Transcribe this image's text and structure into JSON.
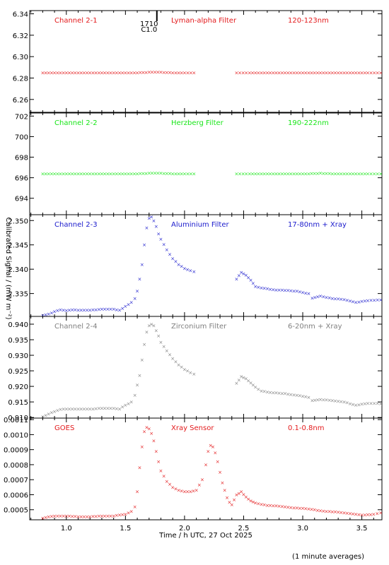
{
  "chart_data": [
    {
      "type": "scatter",
      "channel": "Channel 2-1",
      "filter": "Lyman-alpha Filter",
      "band": "120-123nm",
      "color": "#e31a1c",
      "yticks": [
        "6.26",
        "6.28",
        "6.30",
        "6.32",
        "6.34"
      ],
      "ylim": [
        6.248,
        6.343
      ],
      "marker_label": "1710 C1.0",
      "marker_x": 1.7,
      "series": [
        {
          "x": [
            0.8,
            0.9,
            1.0,
            1.1,
            1.2,
            1.3,
            1.4,
            1.5,
            1.6,
            1.7,
            1.8,
            1.9,
            2.0,
            2.08
          ],
          "y": [
            6.285,
            6.285,
            6.285,
            6.285,
            6.285,
            6.285,
            6.285,
            6.285,
            6.285,
            6.2855,
            6.2855,
            6.285,
            6.285,
            6.285
          ]
        },
        {
          "x": [
            2.44,
            2.55,
            2.65,
            2.75,
            2.85,
            2.95,
            3.05,
            3.15,
            3.25,
            3.35,
            3.45,
            3.55,
            3.66
          ],
          "y": [
            6.285,
            6.285,
            6.285,
            6.285,
            6.285,
            6.285,
            6.285,
            6.285,
            6.285,
            6.285,
            6.285,
            6.285,
            6.285
          ]
        }
      ]
    },
    {
      "type": "scatter",
      "channel": "Channel 2-2",
      "filter": "Herzberg Filter",
      "band": "190-222nm",
      "color": "#19e619",
      "yticks": [
        "694",
        "696",
        "698",
        "700",
        "702"
      ],
      "ylim": [
        692.4,
        702.3
      ],
      "series": [
        {
          "x": [
            0.8,
            0.9,
            1.0,
            1.1,
            1.2,
            1.3,
            1.4,
            1.5,
            1.6,
            1.7,
            1.8,
            1.9,
            2.0,
            2.08
          ],
          "y": [
            696.4,
            696.4,
            696.4,
            696.4,
            696.4,
            696.4,
            696.4,
            696.4,
            696.4,
            696.45,
            696.45,
            696.4,
            696.4,
            696.4
          ]
        },
        {
          "x": [
            2.44,
            2.55,
            2.65,
            2.75,
            2.85,
            2.95,
            3.05,
            3.15,
            3.25,
            3.35,
            3.45,
            3.55,
            3.66
          ],
          "y": [
            696.4,
            696.4,
            696.4,
            696.4,
            696.4,
            696.4,
            696.4,
            696.45,
            696.4,
            696.4,
            696.4,
            696.4,
            696.4
          ]
        }
      ]
    },
    {
      "type": "scatter",
      "channel": "Channel 2-3",
      "filter": "Aluminium Filter",
      "band": "17-80nm + Xray",
      "color": "#1a1acc",
      "yticks": [
        "2.335",
        "2.340",
        "2.345",
        "2.350"
      ],
      "ylim": [
        2.3303,
        2.3512
      ],
      "series": [
        {
          "x": [
            0.8,
            0.85,
            0.9,
            0.95,
            1.0,
            1.05,
            1.1,
            1.2,
            1.3,
            1.4,
            1.45,
            1.5,
            1.55,
            1.58,
            1.6,
            1.62,
            1.64,
            1.66,
            1.68,
            1.7,
            1.72,
            1.74,
            1.76,
            1.78,
            1.8,
            1.85,
            1.9,
            1.95,
            2.0,
            2.05,
            2.08
          ],
          "y": [
            2.3305,
            2.3308,
            2.3313,
            2.3317,
            2.3315,
            2.3317,
            2.3316,
            2.3316,
            2.3318,
            2.3318,
            2.3316,
            2.3324,
            2.3332,
            2.334,
            2.3355,
            2.338,
            2.341,
            2.345,
            2.3485,
            2.3505,
            2.3508,
            2.35,
            2.3488,
            2.3473,
            2.3462,
            2.344,
            2.3422,
            2.341,
            2.3402,
            2.3397,
            2.3395
          ]
        },
        {
          "x": [
            2.44,
            2.48,
            2.52,
            2.56,
            2.6,
            2.65,
            2.75,
            2.85,
            2.95,
            3.05,
            3.08,
            3.15,
            3.25,
            3.35,
            3.45,
            3.55,
            3.66
          ],
          "y": [
            2.338,
            2.3394,
            2.3388,
            2.3378,
            2.3365,
            2.3362,
            2.3358,
            2.3357,
            2.3355,
            2.335,
            2.3341,
            2.3345,
            2.334,
            2.3338,
            2.3332,
            2.3336,
            2.3337
          ]
        }
      ]
    },
    {
      "type": "scatter",
      "channel": "Channel 2-4",
      "filter": "Zirconium Filter",
      "band": "6-20nm + Xray",
      "color": "#808080",
      "yticks": [
        "0.910",
        "0.915",
        "0.920",
        "0.925",
        "0.930",
        "0.935",
        "0.940"
      ],
      "ylim": [
        0.9098,
        0.9425
      ],
      "series": [
        {
          "x": [
            0.8,
            0.85,
            0.9,
            0.95,
            1.0,
            1.1,
            1.2,
            1.3,
            1.4,
            1.45,
            1.5,
            1.55,
            1.58,
            1.6,
            1.62,
            1.64,
            1.66,
            1.68,
            1.7,
            1.72,
            1.74,
            1.76,
            1.78,
            1.8,
            1.85,
            1.9,
            1.95,
            2.0,
            2.05,
            2.08
          ],
          "y": [
            0.9102,
            0.9112,
            0.912,
            0.9126,
            0.9128,
            0.9127,
            0.9127,
            0.913,
            0.913,
            0.9128,
            0.914,
            0.915,
            0.9172,
            0.9205,
            0.9235,
            0.9285,
            0.9335,
            0.9375,
            0.9395,
            0.94,
            0.9395,
            0.938,
            0.9362,
            0.9342,
            0.9315,
            0.929,
            0.927,
            0.9255,
            0.9245,
            0.924
          ]
        },
        {
          "x": [
            2.44,
            2.48,
            2.52,
            2.56,
            2.6,
            2.65,
            2.75,
            2.85,
            2.95,
            3.05,
            3.08,
            3.15,
            3.25,
            3.35,
            3.45,
            3.55,
            3.66
          ],
          "y": [
            0.921,
            0.9232,
            0.9225,
            0.9212,
            0.9198,
            0.9185,
            0.918,
            0.9177,
            0.9172,
            0.9165,
            0.9155,
            0.9158,
            0.9155,
            0.915,
            0.914,
            0.9146,
            0.9145
          ]
        }
      ]
    },
    {
      "type": "scatter",
      "channel": "GOES",
      "filter": "Xray Sensor",
      "band": "0.1-0.8nm",
      "color": "#e31a1c",
      "yticks": [
        "0.0005",
        "0.0006",
        "0.0007",
        "0.0008",
        "0.0009",
        "0.0010",
        "0.0011"
      ],
      "ylim": [
        0.000433,
        0.00111
      ],
      "series": [
        {
          "x": [
            0.8,
            0.85,
            0.9,
            0.95,
            1.0,
            1.1,
            1.2,
            1.3,
            1.4,
            1.5,
            1.55,
            1.58,
            1.6,
            1.62,
            1.64,
            1.66,
            1.68,
            1.7,
            1.72,
            1.74,
            1.76,
            1.78,
            1.8,
            1.85,
            1.9,
            1.95,
            2.0,
            2.05,
            2.1,
            2.15,
            2.18,
            2.2,
            2.22,
            2.24,
            2.26,
            2.28,
            2.3,
            2.32,
            2.34,
            2.36,
            2.38,
            2.4,
            2.44,
            2.48,
            2.52,
            2.56,
            2.6,
            2.7,
            2.8,
            2.9,
            3.0,
            3.1,
            3.2,
            3.3,
            3.4,
            3.5,
            3.6,
            3.66
          ],
          "y": [
            0.000445,
            0.000455,
            0.00046,
            0.00046,
            0.00046,
            0.000455,
            0.000455,
            0.00046,
            0.00046,
            0.00047,
            0.00049,
            0.00052,
            0.00062,
            0.00078,
            0.00092,
            0.00102,
            0.00105,
            0.00104,
            0.00101,
            0.00096,
            0.00089,
            0.00082,
            0.00076,
            0.00069,
            0.00065,
            0.00063,
            0.00062,
            0.00062,
            0.00063,
            0.0007,
            0.0008,
            0.00089,
            0.00093,
            0.00092,
            0.00088,
            0.00082,
            0.00075,
            0.00068,
            0.00063,
            0.00058,
            0.00055,
            0.000535,
            0.0006,
            0.00062,
            0.000585,
            0.00056,
            0.000545,
            0.00053,
            0.000525,
            0.000515,
            0.00051,
            0.0005,
            0.00049,
            0.000485,
            0.000475,
            0.000465,
            0.00047,
            0.00048
          ]
        }
      ]
    }
  ],
  "x_axis": {
    "ticks": [
      "1.0",
      "1.5",
      "2.0",
      "2.5",
      "3.0",
      "3.5"
    ],
    "xlim": [
      0.69,
      3.67
    ],
    "label": "Time / h UTC, 27 Oct 2025"
  },
  "ylabel": "Calibrated Signal / (mW m⁻²)",
  "footnote": "(1 minute averages)"
}
